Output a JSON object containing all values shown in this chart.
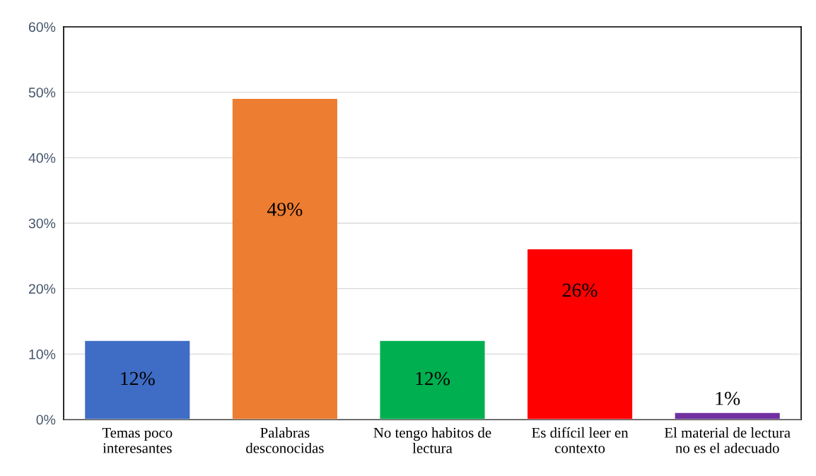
{
  "chart_data": {
    "type": "bar",
    "categories": [
      "Temas poco\ninteresantes",
      "Palabras\ndesconocidas",
      "No tengo habitos de\nlectura",
      "Es difícil leer en\ncontexto",
      "El material de lectura\nno es el adecuado"
    ],
    "values": [
      12,
      49,
      12,
      26,
      1
    ],
    "colors": [
      "#3f6cc4",
      "#ed7d31",
      "#00b050",
      "#ff0000",
      "#7030a0"
    ],
    "value_labels": [
      "12%",
      "49%",
      "12%",
      "26%",
      "1%"
    ],
    "ylim": [
      0,
      60
    ],
    "yticks": [
      {
        "value": 0,
        "label": "0%"
      },
      {
        "value": 10,
        "label": "10%"
      },
      {
        "value": 20,
        "label": "20%"
      },
      {
        "value": 30,
        "label": "30%"
      },
      {
        "value": 40,
        "label": "40%"
      },
      {
        "value": 50,
        "label": "50%"
      },
      {
        "value": 60,
        "label": "60%"
      }
    ],
    "grid": "y"
  }
}
